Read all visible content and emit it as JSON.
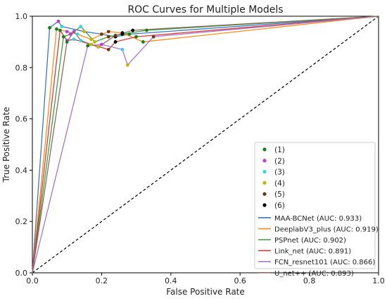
{
  "chart_data": {
    "type": "line",
    "title": "ROC Curves for Multiple Models",
    "xlabel": "False Positive Rate",
    "ylabel": "True Positive Rate",
    "xlim": [
      0.0,
      1.0
    ],
    "ylim": [
      0.0,
      1.0
    ],
    "x_ticks": [
      "0.0",
      "0.2",
      "0.4",
      "0.6",
      "0.8",
      "1.0"
    ],
    "y_ticks": [
      "0.0",
      "0.2",
      "0.4",
      "0.6",
      "0.8",
      "1.0"
    ],
    "grid": false,
    "legend_position": "lower-right",
    "diagonal": {
      "x": [
        0,
        1
      ],
      "y": [
        0,
        1
      ],
      "style": "dashed",
      "color": "#000000"
    },
    "threshold_markers": [
      {
        "label": "(1)",
        "color": "#1a7f1a"
      },
      {
        "label": "(2)",
        "color": "#c13ad8"
      },
      {
        "label": "(3)",
        "color": "#36d3e8"
      },
      {
        "label": "(4)",
        "color": "#c8b400"
      },
      {
        "label": "(5)",
        "color": "#6b3a16"
      },
      {
        "label": "(6)",
        "color": "#000000"
      }
    ],
    "series": [
      {
        "name": "MAA-BCNet (AUC: 0.933)",
        "color": "#3b78c0",
        "x": [
          0.0,
          0.05,
          0.075,
          0.085,
          0.15,
          0.2,
          0.24,
          0.28,
          1.0
        ],
        "y": [
          0.0,
          0.955,
          0.98,
          0.96,
          0.94,
          0.93,
          0.92,
          0.93,
          1.0
        ]
      },
      {
        "name": "DeeplabV3_plus (AUC: 0.919)",
        "color": "#ff8c1a",
        "x": [
          0.0,
          0.07,
          0.1,
          0.13,
          0.17,
          0.22,
          0.26,
          0.32,
          1.0
        ],
        "y": [
          0.0,
          0.95,
          0.94,
          0.93,
          0.91,
          0.94,
          0.935,
          0.9,
          1.0
        ]
      },
      {
        "name": "PSPnet (AUC: 0.902)",
        "color": "#3ca03c",
        "x": [
          0.0,
          0.09,
          0.11,
          0.14,
          0.18,
          0.22,
          0.26,
          0.33,
          1.0
        ],
        "y": [
          0.0,
          0.92,
          0.93,
          0.96,
          0.9,
          0.92,
          0.93,
          0.945,
          1.0
        ]
      },
      {
        "name": "Link_net (AUC: 0.891)",
        "color": "#d93a3a",
        "x": [
          0.0,
          0.08,
          0.1,
          0.12,
          0.17,
          0.22,
          0.24,
          0.3,
          1.0
        ],
        "y": [
          0.0,
          0.945,
          0.905,
          0.91,
          0.89,
          0.87,
          0.9,
          0.92,
          1.0
        ]
      },
      {
        "name": "FCN_resnet101 (AUC: 0.866)",
        "color": "#a675c8",
        "x": [
          0.0,
          0.16,
          0.2,
          0.26,
          0.275,
          0.35,
          1.0
        ],
        "y": [
          0.0,
          0.885,
          0.89,
          0.87,
          0.81,
          0.92,
          1.0
        ]
      },
      {
        "name": "U_net++ (AUC: 0.893)",
        "color": "#8b6b5a",
        "x": [
          0.0,
          0.1,
          0.12,
          0.14,
          0.19,
          0.24,
          0.29,
          1.0
        ],
        "y": [
          0.0,
          0.9,
          0.94,
          0.905,
          0.88,
          0.925,
          0.945,
          1.0
        ]
      }
    ]
  }
}
